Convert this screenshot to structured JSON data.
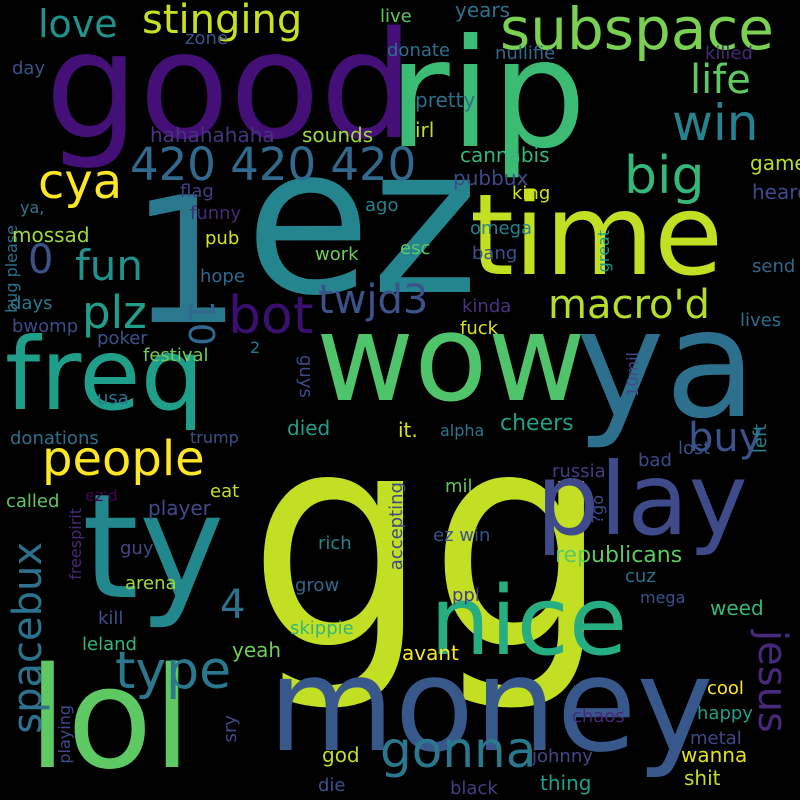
{
  "background": "#000000",
  "words": [
    {
      "text": "gg",
      "color": "#c2df23"
    },
    {
      "text": "ez",
      "color": "#25858e"
    },
    {
      "text": "wow",
      "color": "#50c46a"
    },
    {
      "text": "ya",
      "color": "#2d708e"
    },
    {
      "text": "money",
      "color": "#38588c"
    },
    {
      "text": "rip",
      "color": "#3cbb75"
    },
    {
      "text": "good",
      "color": "#440f76"
    },
    {
      "text": "time",
      "color": "#c2df23"
    },
    {
      "text": "ty",
      "color": "#23888e"
    },
    {
      "text": "lol",
      "color": "#5ec962"
    },
    {
      "text": "play",
      "color": "#3e4a89"
    },
    {
      "text": "freq",
      "color": "#1f9e89"
    },
    {
      "text": "nice",
      "color": "#26ad81"
    },
    {
      "text": "1",
      "color": "#2a788e"
    },
    {
      "text": "subspace",
      "color": "#7ad151"
    },
    {
      "text": "people",
      "color": "#fde725"
    },
    {
      "text": "gonna",
      "color": "#2a788e"
    },
    {
      "text": "big",
      "color": "#35b779"
    },
    {
      "text": "win",
      "color": "#26828e"
    },
    {
      "text": "420 420 420",
      "color": "#31688e"
    },
    {
      "text": "stinging",
      "color": "#c8e020"
    },
    {
      "text": "bot",
      "color": "#3b0f70"
    },
    {
      "text": "cya",
      "color": "#fde725"
    },
    {
      "text": "fun",
      "color": "#21918c"
    },
    {
      "text": "plz",
      "color": "#1f9e89"
    },
    {
      "text": "type",
      "color": "#2a788e"
    },
    {
      "text": "twjd3",
      "color": "#3b528b"
    },
    {
      "text": "macro'd",
      "color": "#b5de2b"
    },
    {
      "text": "love",
      "color": "#21918c"
    },
    {
      "text": "life",
      "color": "#5ec962"
    },
    {
      "text": "spacebux",
      "color": "#2c728e"
    },
    {
      "text": "buy",
      "color": "#3b528b"
    },
    {
      "text": "jesus",
      "color": "#482878"
    },
    {
      "text": "0",
      "color": "#3b528b"
    },
    {
      "text": "10",
      "color": "#31688e"
    },
    {
      "text": "4",
      "color": "#2c728e"
    },
    {
      "text": "2",
      "color": "#2a788e"
    },
    {
      "text": "hahahahaha",
      "color": "#463480"
    },
    {
      "text": "sounds",
      "color": "#a0da39"
    },
    {
      "text": "irl",
      "color": "#bddf26"
    },
    {
      "text": "cannabis",
      "color": "#35b779"
    },
    {
      "text": "pubbux",
      "color": "#3e4a89"
    },
    {
      "text": "pretty",
      "color": "#2d708e"
    },
    {
      "text": "years",
      "color": "#2d708e"
    },
    {
      "text": "live",
      "color": "#5ec962"
    },
    {
      "text": "donate",
      "color": "#2d708e"
    },
    {
      "text": "nullifie",
      "color": "#31688e"
    },
    {
      "text": "killed",
      "color": "#482878"
    },
    {
      "text": "zone",
      "color": "#3b528b"
    },
    {
      "text": "day",
      "color": "#3b528b"
    },
    {
      "text": "bug please",
      "color": "#2c728e"
    },
    {
      "text": "ya,",
      "color": "#2a788e"
    },
    {
      "text": "mossad",
      "color": "#a0da39"
    },
    {
      "text": "flag",
      "color": "#433e85"
    },
    {
      "text": "funny",
      "color": "#482878"
    },
    {
      "text": "ago",
      "color": "#26828e"
    },
    {
      "text": "king",
      "color": "#d8e219"
    },
    {
      "text": "game",
      "color": "#b5de2b"
    },
    {
      "text": "heard",
      "color": "#3e4a89"
    },
    {
      "text": "pub",
      "color": "#d8e219"
    },
    {
      "text": "omega",
      "color": "#26828e"
    },
    {
      "text": "esc",
      "color": "#5ec962"
    },
    {
      "text": "bang",
      "color": "#3b528b"
    },
    {
      "text": "great",
      "color": "#1f9e89"
    },
    {
      "text": "send",
      "color": "#31688e"
    },
    {
      "text": "hope",
      "color": "#31688e"
    },
    {
      "text": "work",
      "color": "#6ece58"
    },
    {
      "text": "kinda",
      "color": "#463480"
    },
    {
      "text": "fuck",
      "color": "#d8e219"
    },
    {
      "text": "lives",
      "color": "#2d708e"
    },
    {
      "text": "days",
      "color": "#2a788e"
    },
    {
      "text": "bwomp",
      "color": "#3e4a89"
    },
    {
      "text": "poker",
      "color": "#3b528b"
    },
    {
      "text": "festival",
      "color": "#6ece58"
    },
    {
      "text": "guys",
      "color": "#3e4a89"
    },
    {
      "text": "usa",
      "color": "#2a788e"
    },
    {
      "text": "died",
      "color": "#1f9e89"
    },
    {
      "text": "it.",
      "color": "#d8e219"
    },
    {
      "text": "alpha",
      "color": "#2a788e"
    },
    {
      "text": "cheers",
      "color": "#1fa188"
    },
    {
      "text": "10mil",
      "color": "#3e4a89"
    },
    {
      "text": "left",
      "color": "#25858e"
    },
    {
      "text": "donations",
      "color": "#2d708e"
    },
    {
      "text": "trump",
      "color": "#3b528b"
    },
    {
      "text": "bad",
      "color": "#3e4a89"
    },
    {
      "text": "lost",
      "color": "#3b528b"
    },
    {
      "text": "russia",
      "color": "#433e85"
    },
    {
      "text": "called",
      "color": "#5ec962"
    },
    {
      "text": "ez'd",
      "color": "#440154"
    },
    {
      "text": "eat",
      "color": "#c2df23"
    },
    {
      "text": "mil",
      "color": "#5ec962"
    },
    {
      "text": "?go",
      "color": "#3e4a89"
    },
    {
      "text": "player",
      "color": "#3e4a89"
    },
    {
      "text": "accepting",
      "color": "#3e4a89"
    },
    {
      "text": "ez win",
      "color": "#3b528b"
    },
    {
      "text": "freespirit",
      "color": "#482878"
    },
    {
      "text": "rich",
      "color": "#26828e"
    },
    {
      "text": "republicans",
      "color": "#5ec962"
    },
    {
      "text": "guy",
      "color": "#3e4a89"
    },
    {
      "text": "cuz",
      "color": "#2d708e"
    },
    {
      "text": "mega",
      "color": "#3b528b"
    },
    {
      "text": "weed",
      "color": "#35b779"
    },
    {
      "text": "arena",
      "color": "#a0da39"
    },
    {
      "text": "grow",
      "color": "#31688e"
    },
    {
      "text": "ppl",
      "color": "#433e85"
    },
    {
      "text": "kill",
      "color": "#3b528b"
    },
    {
      "text": "leland",
      "color": "#35b779"
    },
    {
      "text": "skippie",
      "color": "#35b779"
    },
    {
      "text": "yeah",
      "color": "#6ece58"
    },
    {
      "text": "avant",
      "color": "#fde725"
    },
    {
      "text": "sry",
      "color": "#3e4a89"
    },
    {
      "text": "chaos",
      "color": "#482878"
    },
    {
      "text": "happy",
      "color": "#1f9e89"
    },
    {
      "text": "cool",
      "color": "#fde725"
    },
    {
      "text": "metal",
      "color": "#3e4a89"
    },
    {
      "text": "wanna",
      "color": "#e2e418"
    },
    {
      "text": "god",
      "color": "#c2df23"
    },
    {
      "text": "johnny",
      "color": "#3e4a89"
    },
    {
      "text": "thing",
      "color": "#1f9e89"
    },
    {
      "text": "shit",
      "color": "#c2df23"
    },
    {
      "text": "playing",
      "color": "#3e4a89"
    },
    {
      "text": "die",
      "color": "#3b528b"
    },
    {
      "text": "black",
      "color": "#433e85"
    }
  ]
}
